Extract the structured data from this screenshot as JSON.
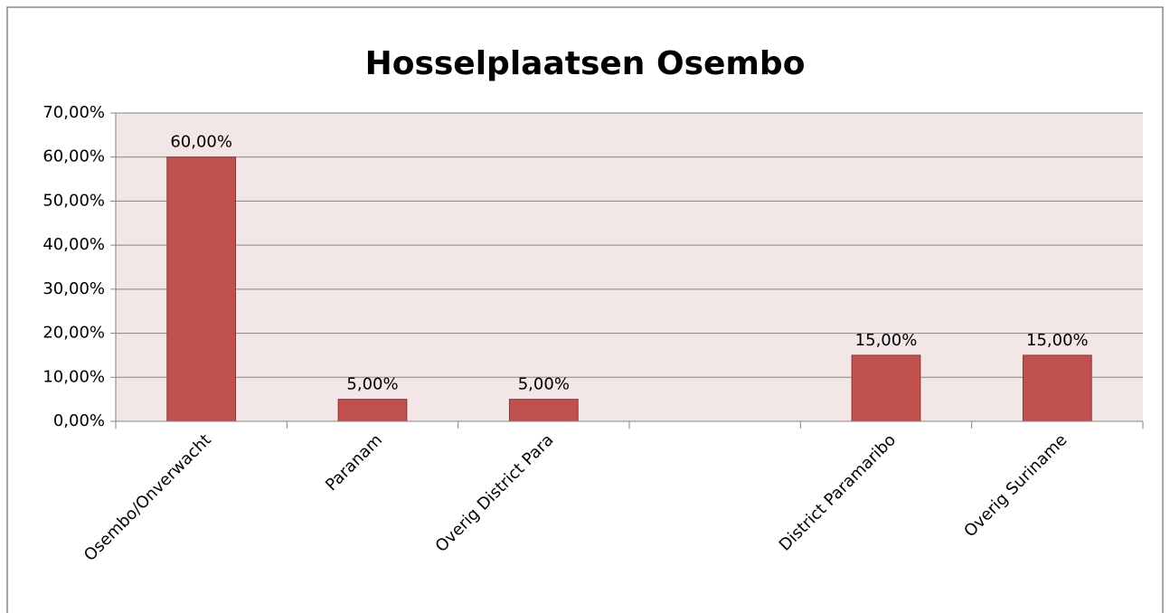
{
  "chart_data": {
    "type": "bar",
    "title": "Hosselplaatsen Osembo",
    "categories": [
      "Osembo/Onverwacht",
      "Paranam",
      "Overig District Para",
      null,
      "District Paramaribo",
      "Overig Suriname"
    ],
    "values": [
      60,
      5,
      5,
      null,
      15,
      15
    ],
    "value_labels": [
      "60,00%",
      "5,00%",
      "5,00%",
      null,
      "15,00%",
      "15,00%"
    ],
    "color": "#c0504d",
    "ylim": [
      0,
      70
    ],
    "yticks": [
      {
        "value": 0,
        "label": "0,00%"
      },
      {
        "value": 10,
        "label": "10,00%"
      },
      {
        "value": 20,
        "label": "20,00%"
      },
      {
        "value": 30,
        "label": "30,00%"
      },
      {
        "value": 40,
        "label": "40,00%"
      },
      {
        "value": 50,
        "label": "50,00%"
      },
      {
        "value": 60,
        "label": "60,00%"
      },
      {
        "value": 70,
        "label": "70,00%"
      }
    ],
    "grid": true
  }
}
